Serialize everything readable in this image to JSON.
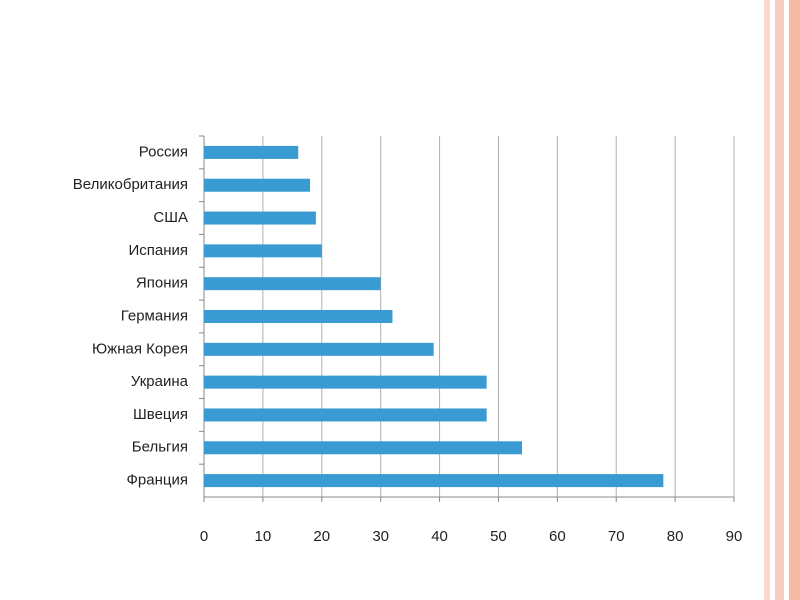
{
  "chart_data": {
    "type": "bar",
    "orientation": "horizontal",
    "categories": [
      "Россия",
      "Великобритания",
      "США",
      "Испания",
      "Япония",
      "Германия",
      "Южная Корея",
      "Украина",
      "Швеция",
      "Бельгия",
      "Франция"
    ],
    "values": [
      16,
      18,
      19,
      20,
      30,
      32,
      39,
      48,
      48,
      54,
      78
    ],
    "color": "#3a9ad2",
    "xlim": [
      0,
      90
    ],
    "xticks": [
      0,
      10,
      20,
      30,
      40,
      50,
      60,
      70,
      80,
      90
    ],
    "grid": true
  }
}
